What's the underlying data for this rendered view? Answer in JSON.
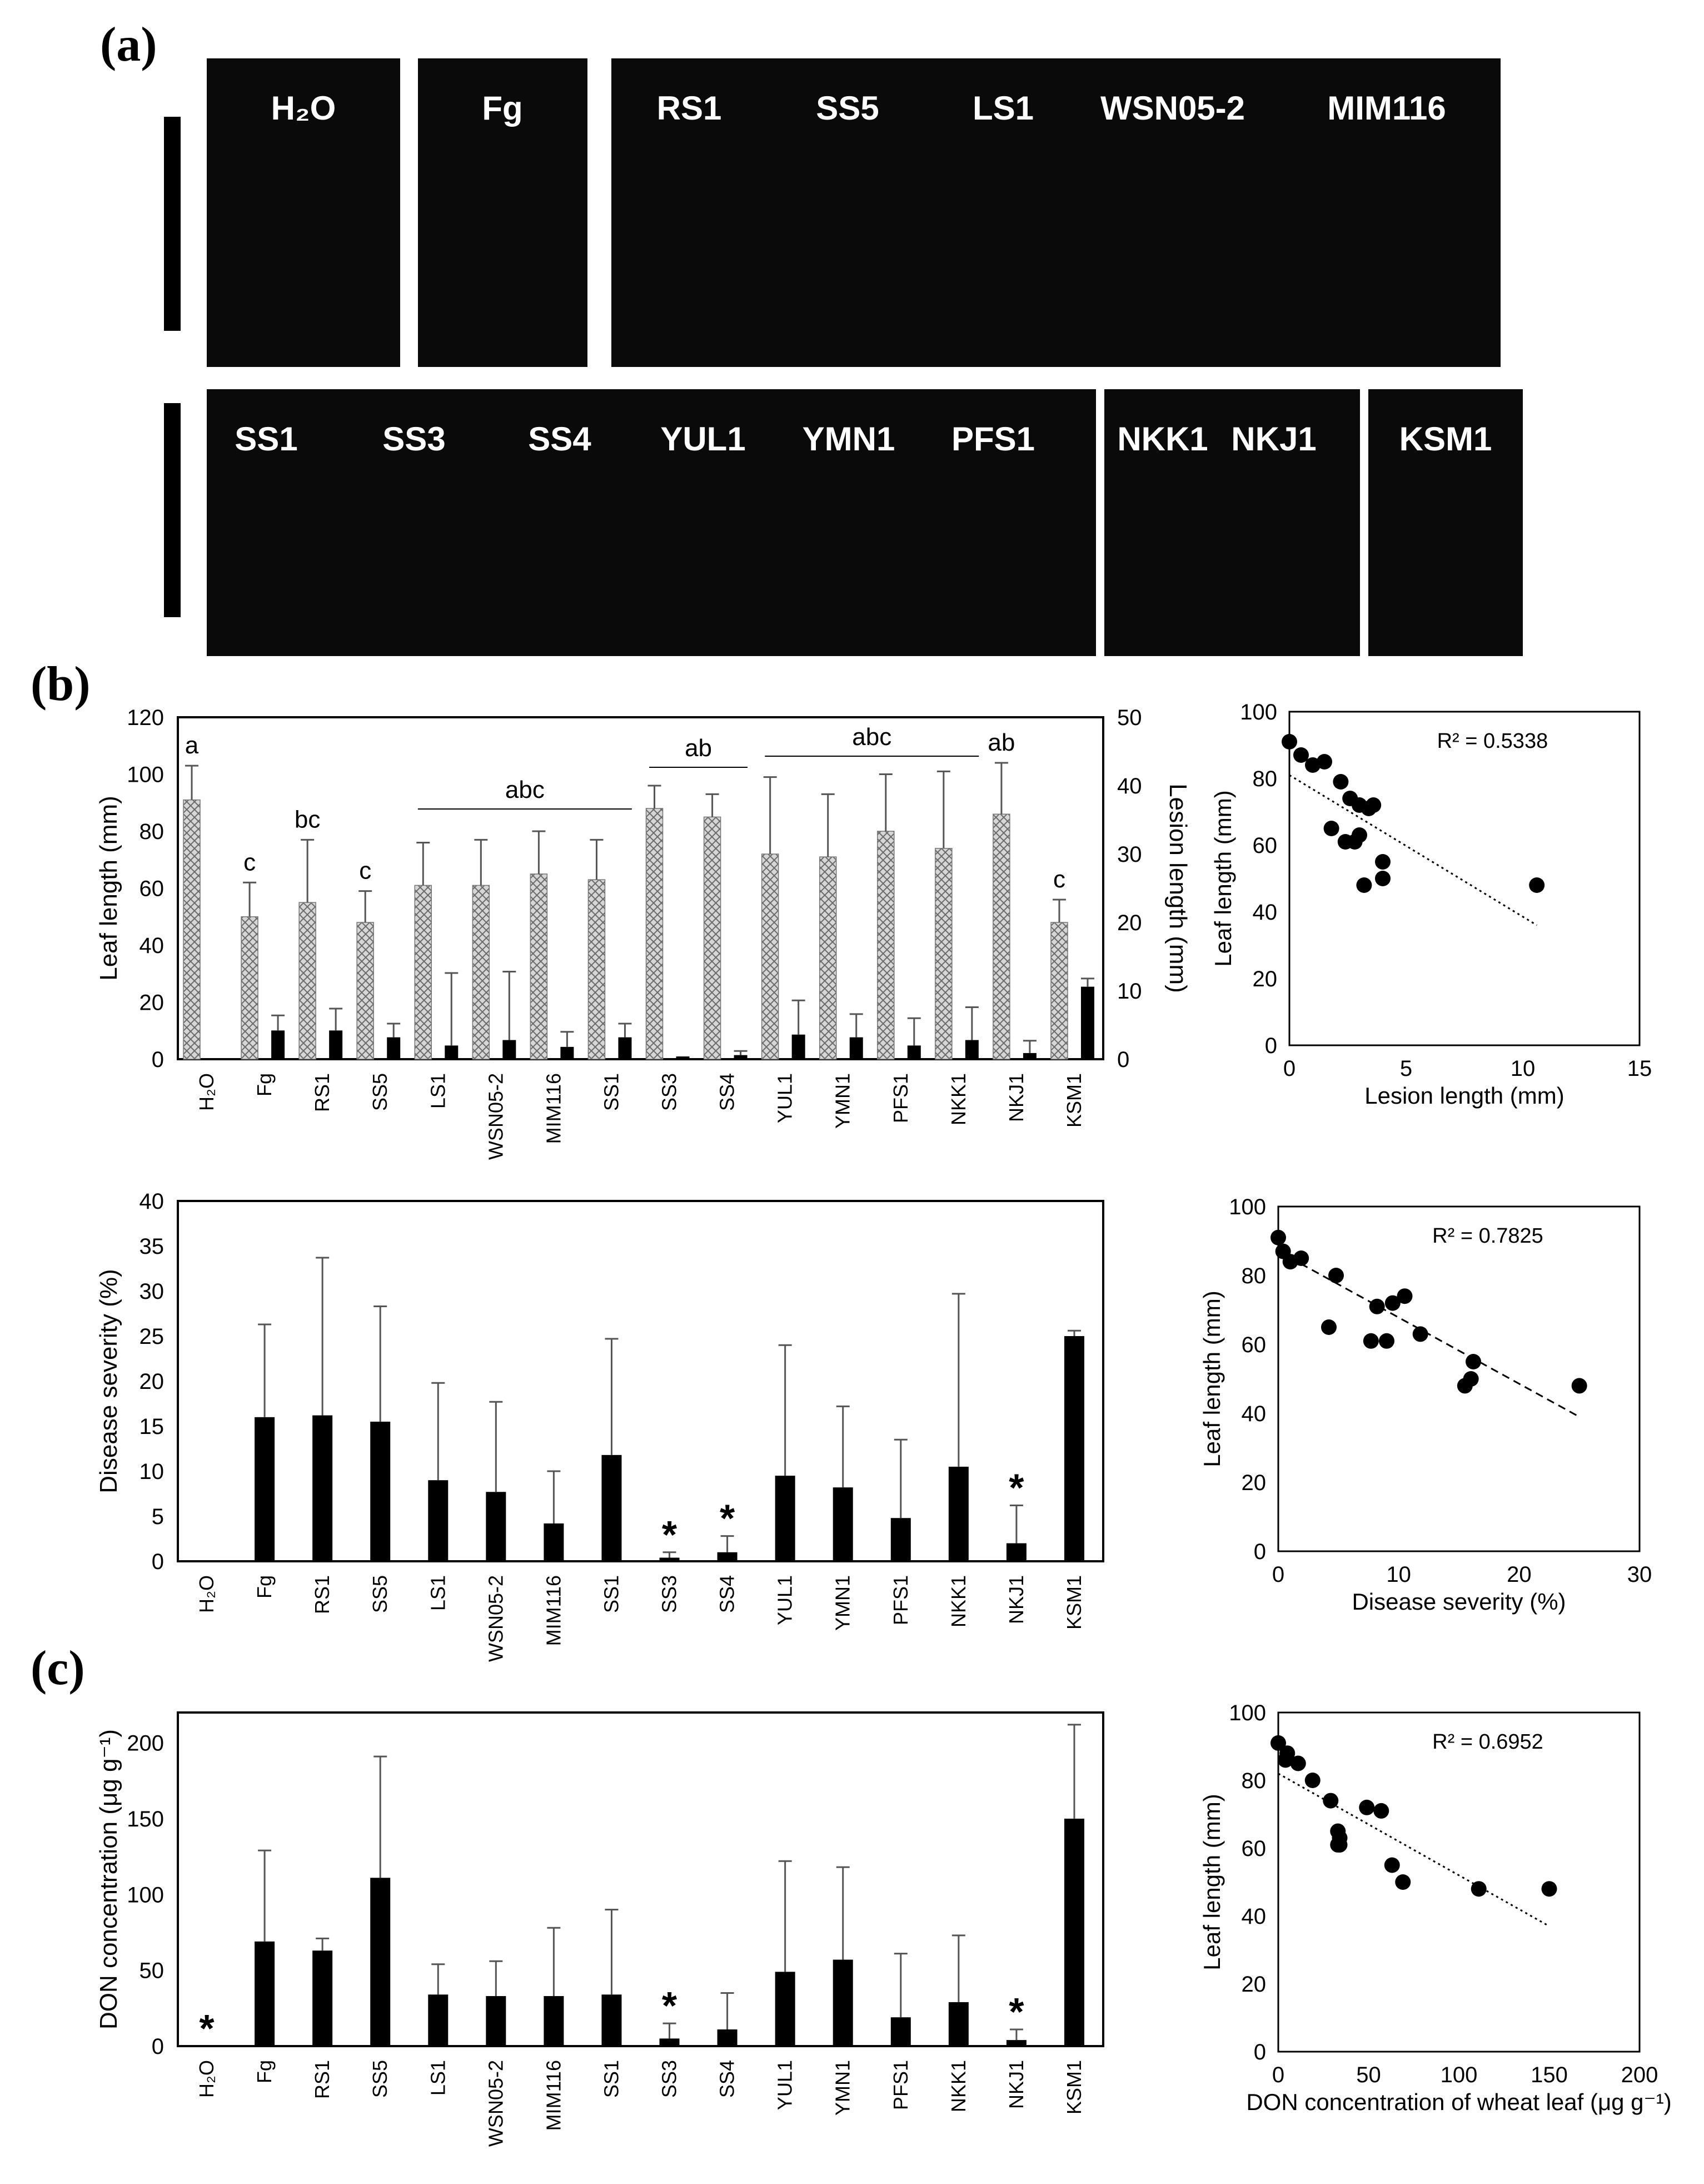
{
  "panel_labels": {
    "a": "(a)",
    "b": "(b)",
    "c": "(c)"
  },
  "photos": {
    "row1": [
      {
        "labels": [
          "H₂O"
        ]
      },
      {
        "labels": [
          "Fg"
        ]
      },
      {
        "labels": [
          "RS1",
          "SS5",
          "LS1",
          "WSN05-2",
          "MIM116"
        ]
      }
    ],
    "row2": [
      {
        "labels": [
          "SS1",
          "SS3",
          "SS4",
          "YUL1",
          "YMN1",
          "PFS1"
        ]
      },
      {
        "labels": [
          "NKK1",
          "NKJ1"
        ]
      },
      {
        "labels": [
          "KSM1"
        ]
      }
    ]
  },
  "colors": {
    "bar_hatched": "#c9c9c9",
    "bar_solid": "#000000",
    "axis": "#000000"
  },
  "chart_data": [
    {
      "type": "bar",
      "id": "leaf-lesion",
      "categories": [
        "H₂O",
        "Fg",
        "RS1",
        "SS5",
        "LS1",
        "WSN05-2",
        "MIM116",
        "SS1",
        "SS3",
        "SS4",
        "YUL1",
        "YMN1",
        "PFS1",
        "NKK1",
        "NKJ1",
        "KSM1"
      ],
      "series": [
        {
          "name": "Leaf length",
          "axis": "left",
          "style": "hatched",
          "values": [
            91,
            50,
            55,
            48,
            61,
            61,
            65,
            63,
            88,
            85,
            72,
            71,
            80,
            74,
            86,
            48
          ],
          "errors": [
            12,
            12,
            22,
            11,
            15,
            16,
            15,
            14,
            8,
            8,
            27,
            22,
            20,
            27,
            18,
            8
          ]
        },
        {
          "name": "Lesion length",
          "axis": "right",
          "style": "solid",
          "values": [
            0,
            4.2,
            4.2,
            3.2,
            2,
            2.8,
            1.8,
            3.2,
            0.4,
            0.6,
            3.6,
            3.2,
            2,
            2.8,
            0.9,
            10.6
          ],
          "errors": [
            0,
            2.2,
            3.2,
            2,
            10.6,
            10,
            2.2,
            2,
            0,
            0.6,
            5,
            3.4,
            4,
            4.8,
            1.8,
            1.2
          ]
        }
      ],
      "ylabel": "Leaf length (mm)",
      "y2label": "Lesion length (mm)",
      "ylim": [
        0,
        120
      ],
      "y2lim": [
        0,
        50
      ],
      "yticks": [
        "0",
        "20",
        "40",
        "60",
        "80",
        "100",
        "120"
      ],
      "y2ticks": [
        "0",
        "10",
        "20",
        "30",
        "40",
        "50"
      ],
      "annotations": [
        {
          "text": "a",
          "cat": 0
        },
        {
          "text": "c",
          "cat": 1
        },
        {
          "text": "bc",
          "cat": 2
        },
        {
          "text": "c",
          "cat": 3
        },
        {
          "text": "abc",
          "from": 4,
          "to": 7
        },
        {
          "text": "ab",
          "from": 8,
          "to": 9
        },
        {
          "text": "abc",
          "from": 10,
          "to": 13
        },
        {
          "text": "ab",
          "cat": 14
        },
        {
          "text": "c",
          "cat": 15
        }
      ]
    },
    {
      "type": "bar",
      "id": "disease-severity",
      "categories": [
        "H₂O",
        "Fg",
        "RS1",
        "SS5",
        "LS1",
        "WSN05-2",
        "MIM116",
        "SS1",
        "SS3",
        "SS4",
        "YUL1",
        "YMN1",
        "PFS1",
        "NKK1",
        "NKJ1",
        "KSM1"
      ],
      "values": [
        0,
        16,
        16.2,
        15.5,
        9,
        7.7,
        4.2,
        11.8,
        0.4,
        1,
        9.5,
        8.2,
        4.8,
        10.5,
        2,
        25
      ],
      "errors": [
        0,
        10.3,
        17.5,
        12.8,
        10.8,
        10,
        5.8,
        12.9,
        0.6,
        1.8,
        14.5,
        9,
        8.7,
        19.2,
        4.2,
        0.6
      ],
      "ylabel": "Disease severity (%)",
      "ylim": [
        0,
        40
      ],
      "yticks": [
        "0",
        "5",
        "10",
        "15",
        "20",
        "25",
        "30",
        "35",
        "40"
      ],
      "stars": [
        8,
        9,
        14
      ]
    },
    {
      "type": "bar",
      "id": "don-concentration",
      "categories": [
        "H₂O",
        "Fg",
        "RS1",
        "SS5",
        "LS1",
        "WSN05-2",
        "MIM116",
        "SS1",
        "SS3",
        "SS4",
        "YUL1",
        "YMN1",
        "PFS1",
        "NKK1",
        "NKJ1",
        "KSM1"
      ],
      "values": [
        0,
        69,
        63,
        111,
        34,
        33,
        33,
        34,
        5,
        11,
        49,
        57,
        19,
        29,
        4,
        150
      ],
      "errors": [
        0,
        60,
        8,
        80,
        20,
        23,
        45,
        56,
        10,
        24,
        73,
        61,
        42,
        44,
        7,
        62
      ],
      "ylabel": "DON concentration (μg g⁻¹)",
      "ylim": [
        0,
        220
      ],
      "yticks": [
        "0",
        "50",
        "100",
        "150",
        "200"
      ],
      "stars": [
        0,
        8,
        14
      ]
    },
    {
      "type": "scatter",
      "id": "scatter-lesion",
      "x": [
        0,
        0.5,
        1,
        1.5,
        1.8,
        2.2,
        2.4,
        2.6,
        2.8,
        3,
        3,
        3.2,
        3.4,
        3.6,
        4,
        4,
        10.6
      ],
      "y": [
        91,
        87,
        84,
        85,
        65,
        79,
        61,
        74,
        61,
        63,
        72,
        48,
        71,
        72,
        55,
        50,
        48
      ],
      "xlabel": "Lesion length (mm)",
      "ylabel": "Leaf length (mm)",
      "xlim": [
        0,
        15
      ],
      "ylim": [
        0,
        100
      ],
      "xticks": [
        "0",
        "5",
        "10",
        "15"
      ],
      "yticks": [
        "0",
        "20",
        "40",
        "60",
        "80",
        "100"
      ],
      "trend": [
        [
          0,
          81
        ],
        [
          10.6,
          36
        ]
      ],
      "trend_style": "dotted",
      "r2": "R² = 0.5338"
    },
    {
      "type": "scatter",
      "id": "scatter-severity",
      "x": [
        0,
        0.4,
        1,
        1.9,
        4.2,
        4.8,
        8.2,
        7.7,
        9,
        9.5,
        10.5,
        11.8,
        15.5,
        16,
        16.2,
        25
      ],
      "y": [
        91,
        87,
        84,
        85,
        65,
        80,
        71,
        61,
        61,
        72,
        74,
        63,
        48,
        50,
        55,
        48
      ],
      "xlabel": "Disease severity (%)",
      "ylabel": "Leaf length (mm)",
      "xlim": [
        0,
        30
      ],
      "ylim": [
        0,
        100
      ],
      "xticks": [
        "0",
        "10",
        "20",
        "30"
      ],
      "yticks": [
        "0",
        "20",
        "40",
        "60",
        "80",
        "100"
      ],
      "trend": [
        [
          0,
          87
        ],
        [
          25,
          39
        ]
      ],
      "trend_style": "dashed",
      "r2": "R² = 0.7825"
    },
    {
      "type": "scatter",
      "id": "scatter-don",
      "x": [
        0,
        4,
        5,
        11,
        19,
        29,
        33,
        33,
        34,
        34,
        49,
        57,
        63,
        69,
        111,
        150
      ],
      "y": [
        91,
        86,
        88,
        85,
        80,
        74,
        61,
        65,
        63,
        61,
        72,
        71,
        55,
        50,
        48,
        48
      ],
      "xlabel": "DON concentration of wheat leaf (μg g⁻¹)",
      "ylabel": "Leaf length (mm)",
      "xlim": [
        0,
        200
      ],
      "ylim": [
        0,
        100
      ],
      "xticks": [
        "0",
        "50",
        "100",
        "150",
        "200"
      ],
      "yticks": [
        "0",
        "20",
        "40",
        "60",
        "80",
        "100"
      ],
      "trend": [
        [
          0,
          82
        ],
        [
          150,
          37
        ]
      ],
      "trend_style": "dotted",
      "r2": "R² = 0.6952"
    }
  ]
}
